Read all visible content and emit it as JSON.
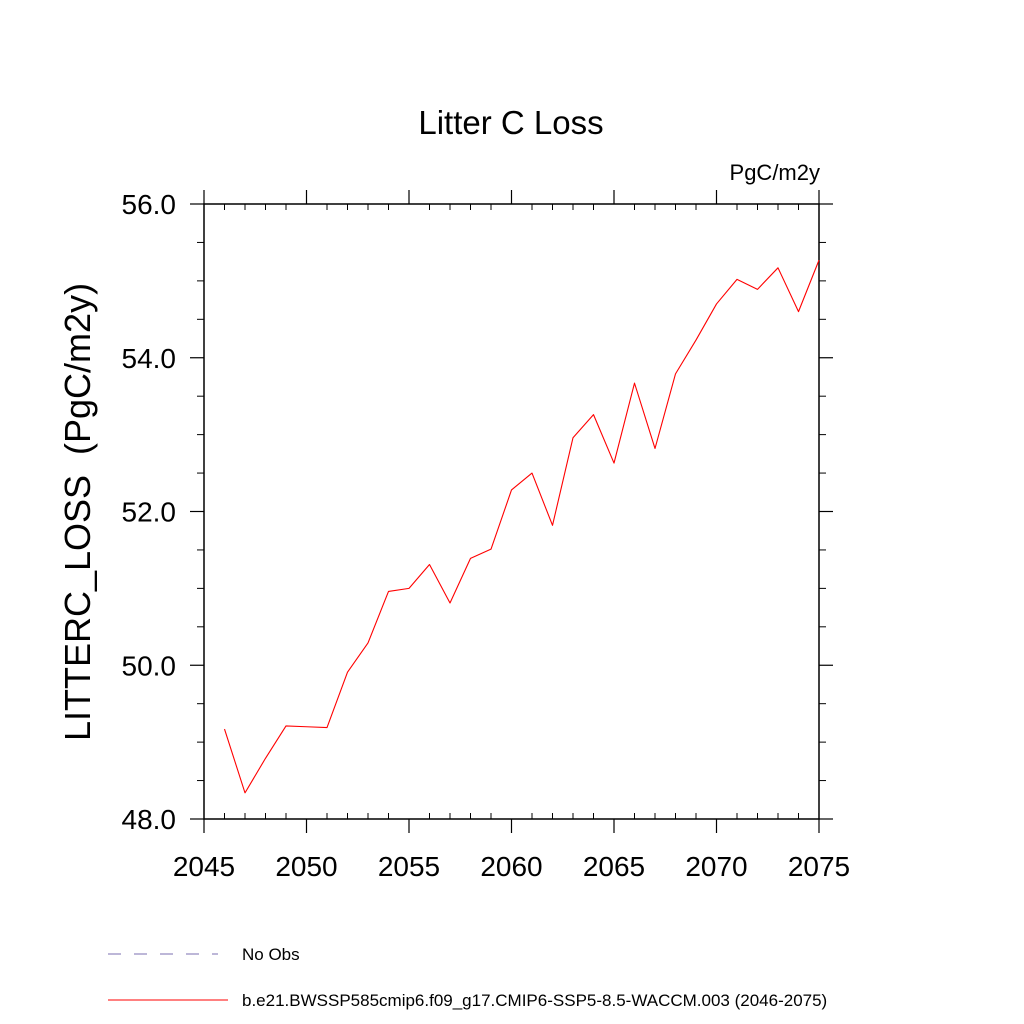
{
  "chart_data": {
    "type": "line",
    "title": "Litter C Loss",
    "units_label": "PgC/m2y",
    "ylabel": "LITTERC_LOSS  (PgC/m2y)",
    "xlabel": "",
    "xlim": [
      2045,
      2075
    ],
    "ylim": [
      48.0,
      56.0
    ],
    "x_ticks": [
      2045,
      2050,
      2055,
      2060,
      2065,
      2070,
      2075
    ],
    "x_tick_labels": [
      "2045",
      "2050",
      "2055",
      "2060",
      "2065",
      "2070",
      "2075"
    ],
    "y_ticks": [
      48.0,
      50.0,
      52.0,
      54.0,
      56.0
    ],
    "y_tick_labels": [
      "48.0",
      "50.0",
      "52.0",
      "54.0",
      "56.0"
    ],
    "grid": false,
    "legend_position": "bottom-left",
    "legend": [
      {
        "label": "No Obs",
        "color": "#7b6fb0",
        "style": "dashed"
      },
      {
        "label": "b.e21.BWSSP585cmip6.f09_g17.CMIP6-SSP5-8.5-WACCM.003 (2046-2075)",
        "color": "#ff0000",
        "style": "solid"
      }
    ],
    "series": [
      {
        "color": "#ff0000",
        "x": [
          2046,
          2047,
          2048,
          2049,
          2050,
          2051,
          2052,
          2053,
          2054,
          2055,
          2056,
          2057,
          2058,
          2059,
          2060,
          2061,
          2062,
          2063,
          2064,
          2065,
          2066,
          2067,
          2068,
          2069,
          2070,
          2071,
          2072,
          2073,
          2074,
          2075
        ],
        "values": [
          49.17,
          48.34,
          48.79,
          49.21,
          49.2,
          49.19,
          49.91,
          50.29,
          50.96,
          51.0,
          51.31,
          50.81,
          51.39,
          51.51,
          52.28,
          52.5,
          51.82,
          52.96,
          53.26,
          52.63,
          53.67,
          52.82,
          53.79,
          54.23,
          54.7,
          55.02,
          54.89,
          55.17,
          54.6,
          55.27
        ]
      }
    ]
  }
}
